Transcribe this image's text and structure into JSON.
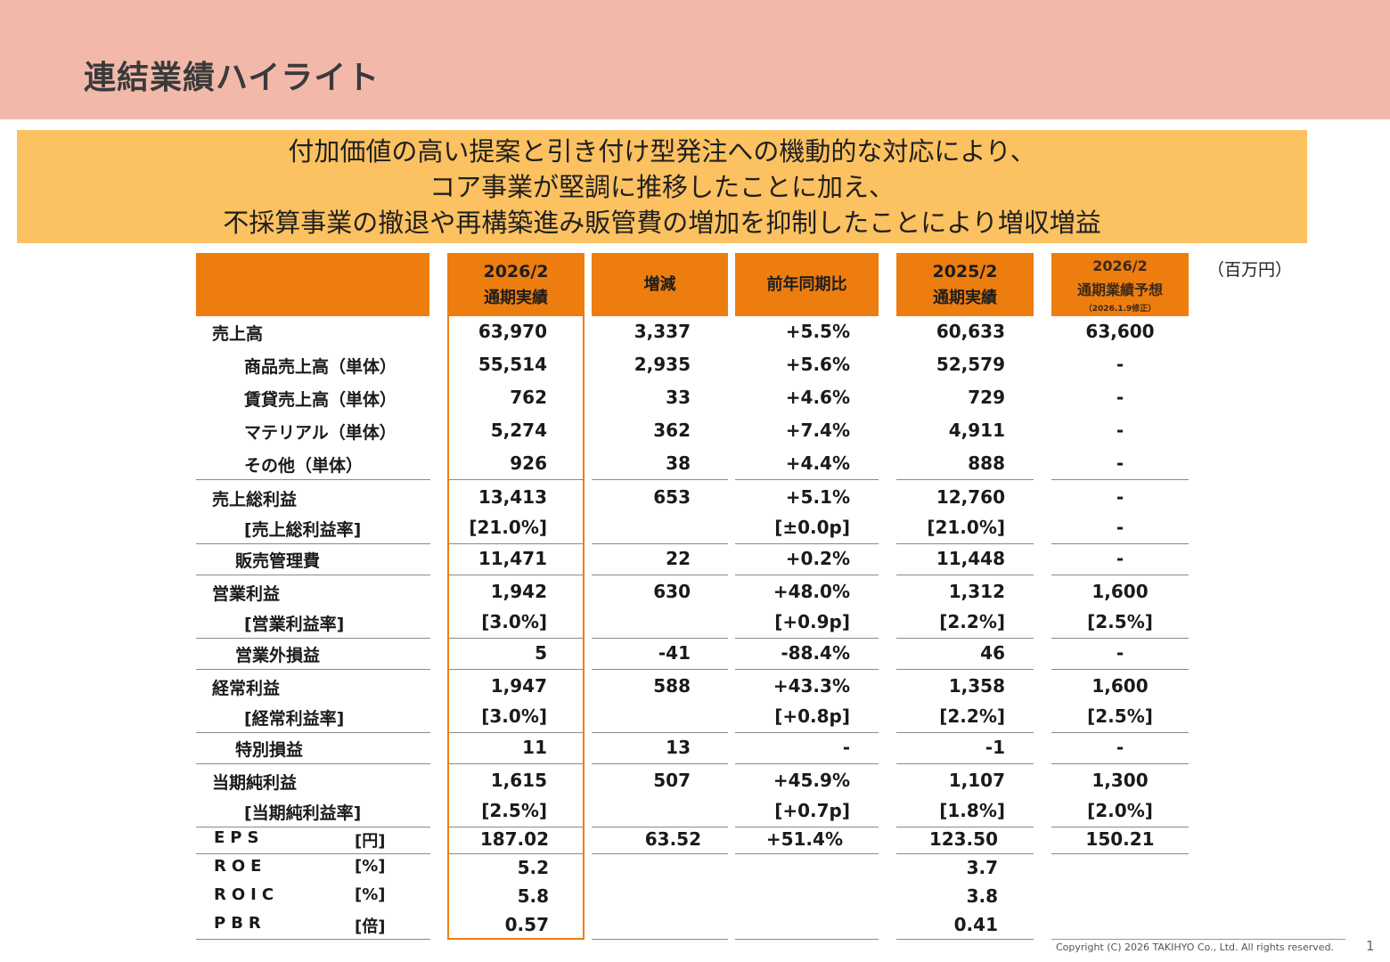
{
  "title": "連結業績ハイライト",
  "banner_lines": [
    "付加価値の高い提案と引き付け型発注への機動的な対応により、",
    "コア事業が堅調に推移したことに加え、",
    "不採算事業の撤退や再構築進み販管費の増加を抑制したことにより増収増益"
  ],
  "unit_note": "（百万円）",
  "columns": {
    "current": {
      "line1": "2026/2",
      "line2": "通期実績"
    },
    "diff": {
      "line1": "増減"
    },
    "yoy": {
      "line1": "前年同期比"
    },
    "previous": {
      "line1": "2025/2",
      "line2": "通期実績"
    },
    "forecast": {
      "line1": "2026/2",
      "line2": "通期業績予想",
      "line3": "（2026.1.9修正）"
    }
  },
  "rows": [
    {
      "label": "売上高",
      "current": "63,970",
      "diff": "3,337",
      "yoy": "+5.5%",
      "previous": "60,633",
      "forecast": "63,600"
    },
    {
      "label": "商品売上高（単体）",
      "current": "55,514",
      "diff": "2,935",
      "yoy": "+5.6%",
      "previous": "52,579",
      "forecast": "-"
    },
    {
      "label": "賃貸売上高（単体）",
      "current": "762",
      "diff": "33",
      "yoy": "+4.6%",
      "previous": "729",
      "forecast": "-"
    },
    {
      "label": "マテリアル（単体）",
      "current": "5,274",
      "diff": "362",
      "yoy": "+7.4%",
      "previous": "4,911",
      "forecast": "-"
    },
    {
      "label": "その他（単体）",
      "current": "926",
      "diff": "38",
      "yoy": "+4.4%",
      "previous": "888",
      "forecast": "-"
    },
    {
      "label": "売上総利益",
      "current": "13,413",
      "diff": "653",
      "yoy": "+5.1%",
      "previous": "12,760",
      "forecast": "-"
    },
    {
      "label": "[売上総利益率]",
      "current": "[21.0%]",
      "diff": "",
      "yoy": "[±0.0p]",
      "previous": "[21.0%]",
      "forecast": "-"
    },
    {
      "label": "販売管理費",
      "current": "11,471",
      "diff": "22",
      "yoy": "+0.2%",
      "previous": "11,448",
      "forecast": "-"
    },
    {
      "label": "営業利益",
      "current": "1,942",
      "diff": "630",
      "yoy": "+48.0%",
      "previous": "1,312",
      "forecast": "1,600"
    },
    {
      "label": "[営業利益率]",
      "current": "[3.0%]",
      "diff": "",
      "yoy": "[+0.9p]",
      "previous": "[2.2%]",
      "forecast": "[2.5%]"
    },
    {
      "label": "営業外損益",
      "current": "5",
      "diff": "-41",
      "yoy": "-88.4%",
      "previous": "46",
      "forecast": "-"
    },
    {
      "label": "経常利益",
      "current": "1,947",
      "diff": "588",
      "yoy": "+43.3%",
      "previous": "1,358",
      "forecast": "1,600"
    },
    {
      "label": "[経常利益率]",
      "current": "[3.0%]",
      "diff": "",
      "yoy": "[+0.8p]",
      "previous": "[2.2%]",
      "forecast": "[2.5%]"
    },
    {
      "label": "特別損益",
      "current": "11",
      "diff": "13",
      "yoy": "-",
      "previous": "-1",
      "forecast": "-"
    },
    {
      "label": "当期純利益",
      "current": "1,615",
      "diff": "507",
      "yoy": "+45.9%",
      "previous": "1,107",
      "forecast": "1,300"
    },
    {
      "label": "[当期純利益率]",
      "current": "[2.5%]",
      "diff": "",
      "yoy": "[+0.7p]",
      "previous": "[1.8%]",
      "forecast": "[2.0%]"
    }
  ],
  "kpis": [
    {
      "label": "EPS",
      "unit": "[円]",
      "current": "187.02",
      "diff": "63.52",
      "yoy": "+51.4%",
      "previous": "123.50",
      "forecast": "150.21"
    },
    {
      "label": "ROE",
      "unit": "[%]",
      "current": "5.2",
      "diff": "",
      "yoy": "",
      "previous": "3.7",
      "forecast": ""
    },
    {
      "label": "ROIC",
      "unit": "[%]",
      "current": "5.8",
      "diff": "",
      "yoy": "",
      "previous": "3.8",
      "forecast": ""
    },
    {
      "label": "PBR",
      "unit": "[倍]",
      "current": "0.57",
      "diff": "",
      "yoy": "",
      "previous": "0.41",
      "forecast": ""
    }
  ],
  "footer": {
    "copyright": "Copyright (C) 2026 TAKIHYO Co., Ltd. All rights reserved.",
    "page_number": "1"
  },
  "colors": {
    "header_band": "#f2b9aa",
    "banner": "#fcc160",
    "column_header": "#ed7d0f"
  }
}
